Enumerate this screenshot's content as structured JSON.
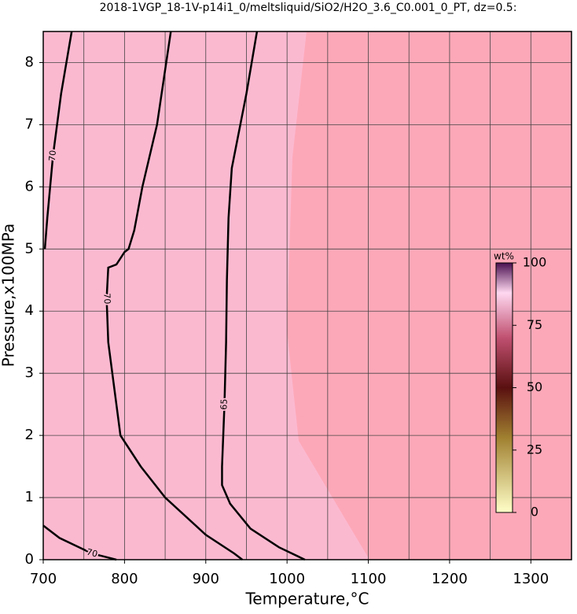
{
  "chart_data": {
    "type": "contour",
    "title": "2018-1VGP_18-1V-p14i1_0/meltsliquid/SiO2/H2O_3.6_C0.001_0_PT, dz=0.5:",
    "xlabel": "Temperature,°C",
    "ylabel": "Pressure,x100MPa",
    "xlim": [
      700,
      1350
    ],
    "ylim": [
      0,
      8.5
    ],
    "xticks": [
      700,
      800,
      900,
      1000,
      1100,
      1200,
      1300
    ],
    "yticks": [
      0,
      1,
      2,
      3,
      4,
      5,
      6,
      7,
      8
    ],
    "xgrid": [
      750,
      850,
      950,
      1050,
      1150,
      1250
    ],
    "grid": true,
    "contours": [
      {
        "level": 70,
        "x": [
          735,
          722,
          712,
          705,
          702
        ],
        "y": [
          8.5,
          7.5,
          6.5,
          5.5,
          5.0
        ]
      },
      {
        "level": 70,
        "x": [
          857,
          840,
          822,
          812,
          805,
          800,
          795,
          790,
          780,
          778,
          780,
          785,
          790,
          795,
          820,
          850,
          900,
          935,
          945
        ],
        "y": [
          8.5,
          7.0,
          6.0,
          5.3,
          5.0,
          4.95,
          4.85,
          4.75,
          4.7,
          4.2,
          3.5,
          3.0,
          2.5,
          2.0,
          1.5,
          1.0,
          0.4,
          0.1,
          0
        ]
      },
      {
        "level": 65,
        "x": [
          963,
          950,
          935,
          932,
          928,
          926,
          925,
          923,
          920,
          920,
          930,
          955,
          990,
          1022
        ],
        "y": [
          8.5,
          7.5,
          6.5,
          6.3,
          5.5,
          4.5,
          3.5,
          2.5,
          1.5,
          1.2,
          0.9,
          0.5,
          0.2,
          0
        ]
      },
      {
        "level": 70,
        "x": [
          700,
          720,
          760,
          790
        ],
        "y": [
          0.55,
          0.35,
          0.1,
          0
        ]
      }
    ],
    "colorbar": {
      "label": "wt%",
      "lim": [
        0,
        100
      ],
      "ticks": [
        0,
        25,
        50,
        75,
        100
      ]
    }
  }
}
